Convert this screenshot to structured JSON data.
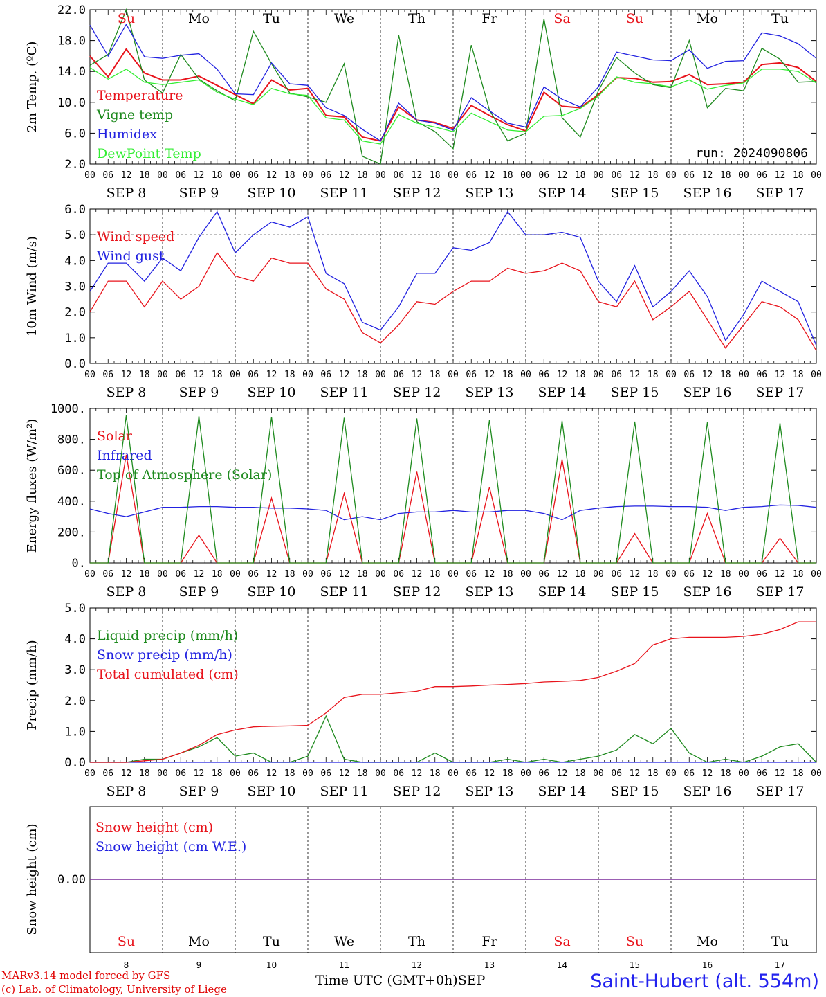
{
  "meta": {
    "credit_line_1": "MARv3.14 model forced by GFS",
    "credit_line_2": "(c) Lab. of Climatology, University of Liege",
    "station": "Saint-Hubert (alt. 554m)",
    "time_axis_label": "Time UTC (GMT+0h)",
    "month_label": "SEP"
  },
  "colors": {
    "red": "#e8131b",
    "green": "#1e8a1e",
    "blue": "#2222e0",
    "lightgreen": "#33ee33",
    "purple": "#7a2a9a"
  },
  "axis": {
    "hour_labels": [
      "00",
      "06",
      "12",
      "18"
    ],
    "date_labels": [
      "SEP  8",
      "SEP  9",
      "SEP 10",
      "SEP 11",
      "SEP 12",
      "SEP 13",
      "SEP 14",
      "SEP 15",
      "SEP 16",
      "SEP 17"
    ],
    "weekday_labels": [
      "Su",
      "Mo",
      "Tu",
      "We",
      "Th",
      "Fr",
      "Sa",
      "Su",
      "Mo",
      "Tu"
    ],
    "weekday_red": [
      true,
      false,
      false,
      false,
      false,
      false,
      true,
      true,
      false,
      false
    ],
    "day_numbers": [
      "8",
      "9",
      "10",
      "11",
      "12",
      "13",
      "14",
      "15",
      "16",
      "17"
    ]
  },
  "chart_data": [
    {
      "type": "line",
      "ylabel": "2m Temp. (ºC)",
      "ylim": [
        2.0,
        22.0
      ],
      "yticks": [
        "2.0",
        "6.0",
        "10.0",
        "14.0",
        "18.0",
        "22.0"
      ],
      "annotation": "run: 2024090806",
      "x_hours_from_sep8_00": [
        0,
        6,
        12,
        18,
        24,
        30,
        36,
        42,
        48,
        54,
        60,
        66,
        72,
        78,
        84,
        90,
        96,
        102,
        108,
        114,
        120,
        126,
        132,
        138,
        144,
        150,
        156,
        162,
        168,
        174,
        180,
        186,
        192,
        198,
        204,
        210,
        216,
        222,
        228,
        234,
        240
      ],
      "series": [
        {
          "name": "Temperature",
          "color": "red",
          "values": [
            16.0,
            13.3,
            16.9,
            13.8,
            12.9,
            12.9,
            13.4,
            12.2,
            11.0,
            9.8,
            12.9,
            11.6,
            11.8,
            8.3,
            8.1,
            5.5,
            5.0,
            9.4,
            7.7,
            7.4,
            6.6,
            9.6,
            8.3,
            7.1,
            6.3,
            11.3,
            9.5,
            9.3,
            11.0,
            13.2,
            13.1,
            12.6,
            12.7,
            13.6,
            12.3,
            12.4,
            12.6,
            14.9,
            15.1,
            14.5,
            12.7
          ]
        },
        {
          "name": "Vigne temp",
          "color": "green",
          "values": [
            14.8,
            16.2,
            22.0,
            12.9,
            11.2,
            16.2,
            13.0,
            11.5,
            10.2,
            19.2,
            15.0,
            11.2,
            10.7,
            10.0,
            15.0,
            3.0,
            1.6,
            18.7,
            7.5,
            6.2,
            4.0,
            17.4,
            9.0,
            5.0,
            6.0,
            20.8,
            8.0,
            5.5,
            11.5,
            15.8,
            13.8,
            12.3,
            11.9,
            18.0,
            9.3,
            11.8,
            11.5,
            17.0,
            15.6,
            12.6,
            12.7
          ]
        },
        {
          "name": "Humidex",
          "color": "blue",
          "values": [
            20.0,
            16.0,
            20.1,
            15.9,
            15.7,
            16.1,
            16.3,
            14.3,
            11.1,
            11.0,
            15.1,
            12.4,
            12.2,
            9.3,
            8.3,
            6.5,
            5.0,
            9.9,
            7.7,
            7.3,
            6.4,
            10.6,
            8.9,
            7.3,
            6.8,
            12.0,
            10.4,
            9.4,
            12.0,
            16.5,
            16.0,
            15.5,
            15.4,
            16.8,
            14.4,
            15.3,
            15.4,
            19.0,
            18.6,
            17.6,
            15.7
          ]
        },
        {
          "name": "DewPoint Temp",
          "color": "lightgreen",
          "values": [
            14.5,
            13.0,
            14.3,
            12.6,
            12.3,
            12.6,
            12.9,
            11.3,
            10.4,
            9.7,
            11.8,
            11.1,
            10.9,
            8.0,
            7.7,
            5.0,
            4.6,
            8.4,
            7.3,
            6.8,
            6.2,
            8.6,
            7.5,
            6.4,
            6.2,
            8.2,
            8.3,
            9.2,
            10.8,
            13.3,
            12.6,
            12.4,
            12.0,
            12.9,
            11.7,
            12.2,
            12.5,
            14.3,
            14.3,
            14.0,
            12.5
          ]
        }
      ]
    },
    {
      "type": "line",
      "ylabel": "10m Wind (m/s)",
      "ylim": [
        0.0,
        6.0
      ],
      "yticks": [
        "0.0",
        "1.0",
        "2.0",
        "3.0",
        "4.0",
        "5.0",
        "6.0"
      ],
      "dashed_reference": 5.0,
      "x_hours_from_sep8_00": [
        0,
        6,
        12,
        18,
        24,
        30,
        36,
        42,
        48,
        54,
        60,
        66,
        72,
        78,
        84,
        90,
        96,
        102,
        108,
        114,
        120,
        126,
        132,
        138,
        144,
        150,
        156,
        162,
        168,
        174,
        180,
        186,
        192,
        198,
        204,
        210,
        216,
        222,
        228,
        234,
        240
      ],
      "series": [
        {
          "name": "Wind speed",
          "color": "red",
          "values": [
            2.0,
            3.2,
            3.2,
            2.2,
            3.2,
            2.5,
            3.0,
            4.3,
            3.4,
            3.2,
            4.1,
            3.9,
            3.9,
            2.9,
            2.5,
            1.2,
            0.8,
            1.5,
            2.4,
            2.3,
            2.8,
            3.2,
            3.2,
            3.7,
            3.5,
            3.6,
            3.9,
            3.6,
            2.4,
            2.2,
            3.2,
            1.7,
            2.2,
            2.8,
            1.7,
            0.6,
            1.5,
            2.4,
            2.2,
            1.7,
            0.5
          ]
        },
        {
          "name": "Wind gust",
          "color": "blue",
          "values": [
            2.8,
            3.9,
            3.9,
            3.2,
            4.1,
            3.6,
            4.9,
            5.9,
            4.3,
            5.0,
            5.5,
            5.3,
            5.7,
            3.5,
            3.1,
            1.6,
            1.3,
            2.2,
            3.5,
            3.5,
            4.5,
            4.4,
            4.7,
            5.9,
            5.0,
            5.0,
            5.1,
            4.9,
            3.2,
            2.4,
            3.8,
            2.2,
            2.8,
            3.6,
            2.6,
            0.9,
            1.9,
            3.2,
            2.8,
            2.4,
            0.7
          ]
        }
      ]
    },
    {
      "type": "line",
      "ylabel": "Energy fluxes (W/m²)",
      "ylim": [
        0,
        1000
      ],
      "yticks": [
        "0.",
        "200.",
        "400.",
        "600.",
        "800.",
        "1000."
      ],
      "x_hours_from_sep8_00": [
        0,
        6,
        12,
        18,
        24,
        30,
        36,
        42,
        48,
        54,
        60,
        66,
        72,
        78,
        84,
        90,
        96,
        102,
        108,
        114,
        120,
        126,
        132,
        138,
        144,
        150,
        156,
        162,
        168,
        174,
        180,
        186,
        192,
        198,
        204,
        210,
        216,
        222,
        228,
        234,
        240
      ],
      "series": [
        {
          "name": "Solar",
          "color": "red",
          "values": [
            0,
            0,
            700,
            0,
            0,
            0,
            180,
            0,
            0,
            0,
            420,
            0,
            0,
            0,
            450,
            0,
            0,
            0,
            590,
            0,
            0,
            0,
            490,
            0,
            0,
            0,
            670,
            0,
            0,
            0,
            190,
            0,
            0,
            0,
            320,
            0,
            0,
            0,
            160,
            0,
            0
          ]
        },
        {
          "name": "Infrared",
          "color": "blue",
          "values": [
            350,
            320,
            300,
            330,
            360,
            360,
            365,
            365,
            360,
            360,
            355,
            355,
            350,
            340,
            280,
            300,
            280,
            320,
            330,
            330,
            340,
            330,
            330,
            340,
            340,
            320,
            280,
            340,
            355,
            365,
            368,
            368,
            365,
            365,
            360,
            340,
            360,
            365,
            375,
            372,
            360
          ]
        },
        {
          "name": "Top of Atmosphere (Solar)",
          "color": "green",
          "values": [
            0,
            0,
            955,
            0,
            0,
            0,
            950,
            0,
            0,
            0,
            945,
            0,
            0,
            0,
            940,
            0,
            0,
            0,
            935,
            0,
            0,
            0,
            925,
            0,
            0,
            0,
            920,
            0,
            0,
            0,
            915,
            0,
            0,
            0,
            910,
            0,
            0,
            0,
            905,
            0,
            0
          ]
        }
      ]
    },
    {
      "type": "line",
      "ylabel": "Precip (mm/h)",
      "ylim": [
        0.0,
        5.0
      ],
      "yticks": [
        "0.0",
        "1.0",
        "2.0",
        "3.0",
        "4.0",
        "5.0"
      ],
      "x_hours_from_sep8_00": [
        0,
        6,
        12,
        18,
        24,
        30,
        36,
        42,
        48,
        54,
        60,
        66,
        72,
        78,
        84,
        90,
        96,
        102,
        108,
        114,
        120,
        126,
        132,
        138,
        144,
        150,
        156,
        162,
        168,
        174,
        180,
        186,
        192,
        198,
        204,
        210,
        216,
        222,
        228,
        234,
        240
      ],
      "series": [
        {
          "name": "Liquid precip (mm/h)",
          "color": "green",
          "values": [
            0,
            0,
            0,
            0.1,
            0.1,
            0.3,
            0.5,
            0.8,
            0.2,
            0.3,
            0,
            0,
            0.2,
            1.5,
            0.1,
            0,
            0,
            0,
            0,
            0.3,
            0,
            0,
            0,
            0.1,
            0,
            0.1,
            0,
            0.1,
            0.2,
            0.4,
            0.9,
            0.6,
            1.1,
            0.3,
            0,
            0.1,
            0,
            0.2,
            0.5,
            0.6,
            0
          ]
        },
        {
          "name": "Snow precip (mm/h)",
          "color": "blue",
          "values": [
            0,
            0,
            0,
            0,
            0,
            0,
            0,
            0,
            0,
            0,
            0,
            0,
            0,
            0,
            0,
            0,
            0,
            0,
            0,
            0,
            0,
            0,
            0,
            0,
            0,
            0,
            0,
            0,
            0,
            0,
            0,
            0,
            0,
            0,
            0,
            0,
            0,
            0,
            0,
            0,
            0
          ]
        },
        {
          "name": "Total cumulated (cm)",
          "color": "red",
          "values": [
            0,
            0,
            0,
            0.05,
            0.1,
            0.3,
            0.55,
            0.9,
            1.05,
            1.15,
            1.17,
            1.18,
            1.2,
            1.6,
            2.1,
            2.2,
            2.2,
            2.25,
            2.3,
            2.45,
            2.45,
            2.47,
            2.5,
            2.52,
            2.55,
            2.6,
            2.62,
            2.65,
            2.75,
            2.95,
            3.2,
            3.8,
            4.0,
            4.05,
            4.05,
            4.05,
            4.08,
            4.15,
            4.3,
            4.55,
            4.55
          ]
        }
      ]
    },
    {
      "type": "line",
      "ylabel": "Snow height (cm)",
      "ytick": "0.00",
      "series": [
        {
          "name": "Snow height (cm)",
          "color": "red",
          "value": 0.0
        },
        {
          "name": "Snow height (cm W.E.)",
          "color": "blue",
          "value": 0.0
        }
      ]
    }
  ]
}
